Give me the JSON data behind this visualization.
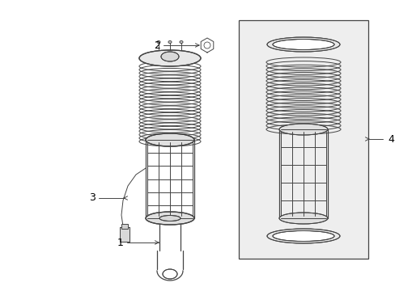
{
  "background_color": "#ffffff",
  "line_color": "#444444",
  "label_color": "#000000",
  "fig_w": 4.89,
  "fig_h": 3.6,
  "dpi": 100
}
